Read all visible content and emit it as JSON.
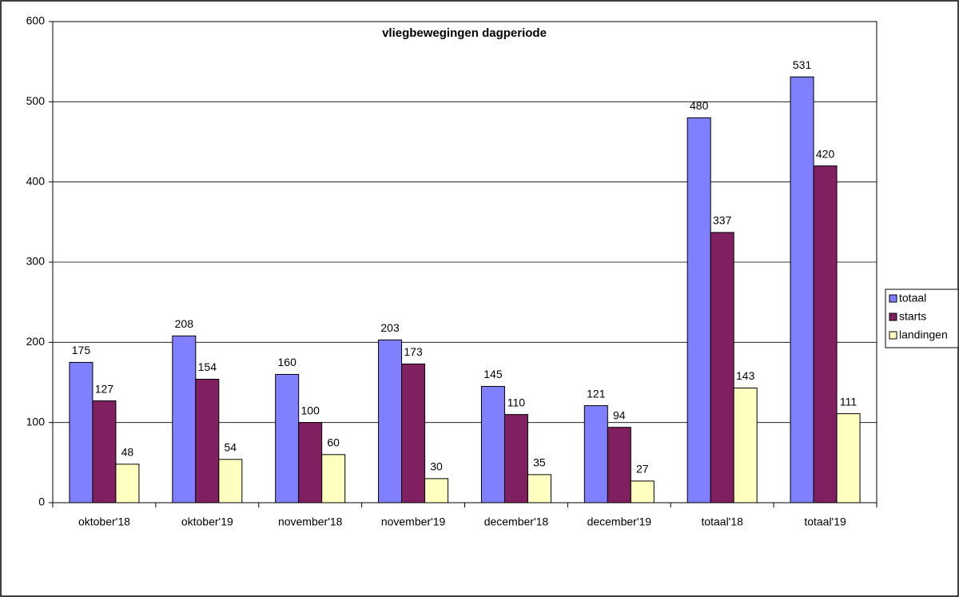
{
  "chart_data": {
    "type": "bar",
    "title": "vliegbewegingen dagperiode",
    "categories": [
      "oktober'18",
      "oktober'19",
      "november'18",
      "november'19",
      "december'18",
      "december'19",
      "totaal'18",
      "totaal'19"
    ],
    "series": [
      {
        "name": "totaal",
        "color": "#8080ff",
        "values": [
          175,
          208,
          160,
          203,
          145,
          121,
          480,
          531
        ]
      },
      {
        "name": "starts",
        "color": "#802060",
        "values": [
          127,
          154,
          100,
          173,
          110,
          94,
          337,
          420
        ]
      },
      {
        "name": "landingen",
        "color": "#ffffc0",
        "values": [
          48,
          54,
          60,
          30,
          35,
          27,
          143,
          111
        ]
      }
    ],
    "ylim": [
      0,
      600
    ],
    "yticks": [
      0,
      100,
      200,
      300,
      400,
      500,
      600
    ],
    "grid": true,
    "legend": "right"
  }
}
